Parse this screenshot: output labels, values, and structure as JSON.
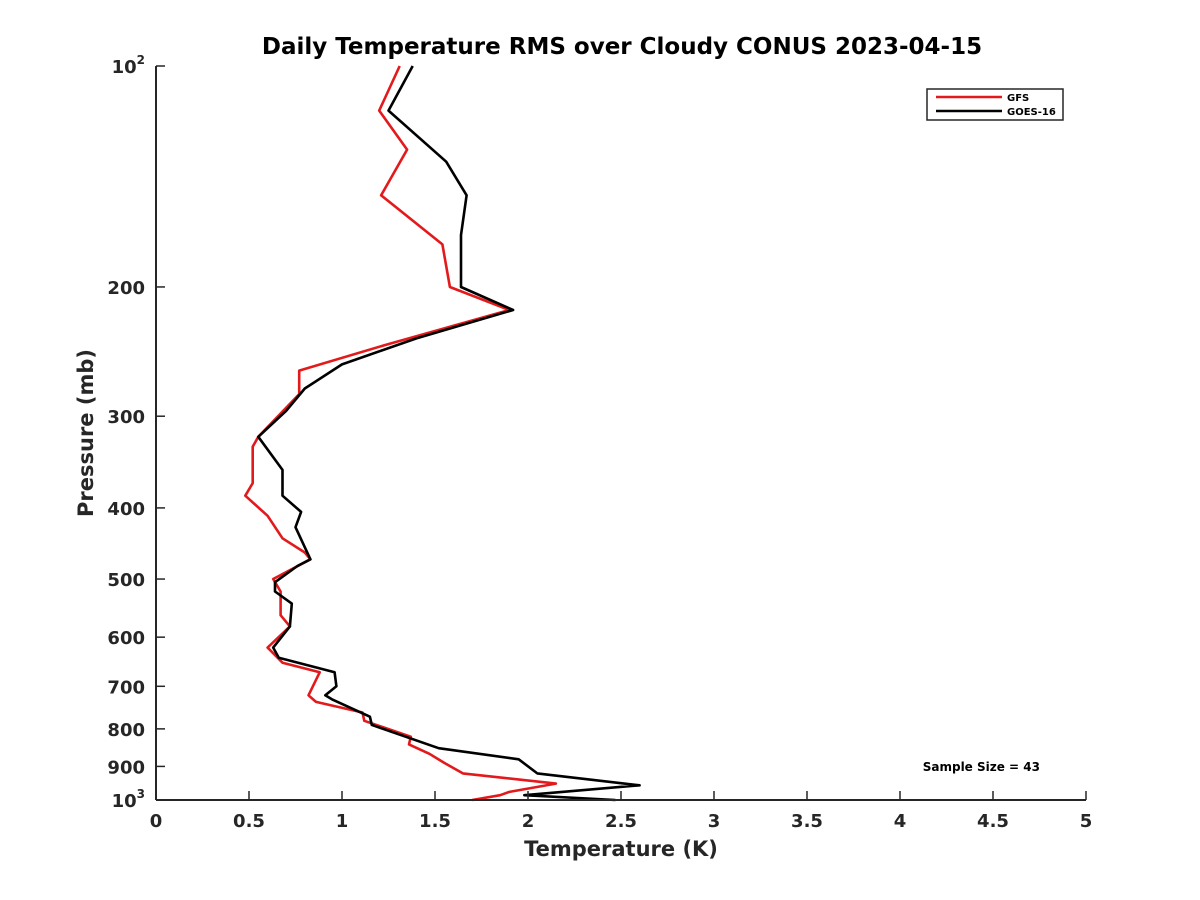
{
  "chart_data": {
    "type": "line",
    "title": "Daily Temperature RMS over Cloudy CONUS 2023-04-15",
    "xlabel": "Temperature (K)",
    "ylabel": "Pressure (mb)",
    "xlim": [
      0,
      5
    ],
    "ylim": [
      100,
      1000
    ],
    "y_scale": "log",
    "y_reversed": true,
    "x_ticks": [
      0,
      0.5,
      1,
      1.5,
      2,
      2.5,
      3,
      3.5,
      4,
      4.5,
      5
    ],
    "x_tick_labels": [
      "0",
      "0.5",
      "1",
      "1.5",
      "2",
      "2.5",
      "3",
      "3.5",
      "4",
      "4.5",
      "5"
    ],
    "y_ticks": [
      {
        "value": 100,
        "base": "10",
        "exp": "2"
      },
      {
        "value": 200,
        "label": "200"
      },
      {
        "value": 300,
        "label": "300"
      },
      {
        "value": 400,
        "label": "400"
      },
      {
        "value": 500,
        "label": "500"
      },
      {
        "value": 600,
        "label": "600"
      },
      {
        "value": 700,
        "label": "700"
      },
      {
        "value": 800,
        "label": "800"
      },
      {
        "value": 900,
        "label": "900"
      },
      {
        "value": 1000,
        "base": "10",
        "exp": "3"
      }
    ],
    "grid": false,
    "legend_position": "top-right",
    "annotation": "Sample Size = 43",
    "series": [
      {
        "name": "GFS",
        "color": "#e31a1c",
        "points": [
          [
            1.31,
            100
          ],
          [
            1.2,
            115
          ],
          [
            1.35,
            130
          ],
          [
            1.21,
            150
          ],
          [
            1.54,
            175
          ],
          [
            1.58,
            200
          ],
          [
            1.9,
            215
          ],
          [
            1.23,
            240
          ],
          [
            0.77,
            260
          ],
          [
            0.77,
            280
          ],
          [
            0.55,
            320
          ],
          [
            0.52,
            330
          ],
          [
            0.52,
            370
          ],
          [
            0.48,
            385
          ],
          [
            0.6,
            410
          ],
          [
            0.68,
            440
          ],
          [
            0.8,
            460
          ],
          [
            0.83,
            470
          ],
          [
            0.63,
            500
          ],
          [
            0.67,
            520
          ],
          [
            0.67,
            560
          ],
          [
            0.72,
            580
          ],
          [
            0.6,
            620
          ],
          [
            0.68,
            650
          ],
          [
            0.88,
            670
          ],
          [
            0.82,
            720
          ],
          [
            0.86,
            735
          ],
          [
            1.11,
            760
          ],
          [
            1.12,
            780
          ],
          [
            1.37,
            820
          ],
          [
            1.36,
            840
          ],
          [
            1.47,
            865
          ],
          [
            1.55,
            890
          ],
          [
            1.65,
            920
          ],
          [
            2.15,
            950
          ],
          [
            1.9,
            975
          ],
          [
            1.85,
            985
          ],
          [
            1.7,
            1000
          ]
        ]
      },
      {
        "name": "GOES-16",
        "color": "#000000",
        "points": [
          [
            1.38,
            100
          ],
          [
            1.25,
            115
          ],
          [
            1.56,
            135
          ],
          [
            1.67,
            150
          ],
          [
            1.64,
            170
          ],
          [
            1.64,
            200
          ],
          [
            1.92,
            215
          ],
          [
            1.4,
            235
          ],
          [
            1.0,
            255
          ],
          [
            0.8,
            275
          ],
          [
            0.7,
            295
          ],
          [
            0.55,
            320
          ],
          [
            0.68,
            355
          ],
          [
            0.68,
            385
          ],
          [
            0.78,
            405
          ],
          [
            0.75,
            425
          ],
          [
            0.83,
            470
          ],
          [
            0.76,
            480
          ],
          [
            0.64,
            505
          ],
          [
            0.64,
            520
          ],
          [
            0.73,
            540
          ],
          [
            0.72,
            580
          ],
          [
            0.63,
            620
          ],
          [
            0.66,
            640
          ],
          [
            0.96,
            670
          ],
          [
            0.97,
            700
          ],
          [
            0.91,
            720
          ],
          [
            0.93,
            725
          ],
          [
            0.95,
            730
          ],
          [
            1.15,
            770
          ],
          [
            1.16,
            790
          ],
          [
            1.52,
            850
          ],
          [
            1.95,
            880
          ],
          [
            2.05,
            920
          ],
          [
            2.6,
            955
          ],
          [
            1.98,
            985
          ],
          [
            2.47,
            1000
          ]
        ]
      }
    ]
  }
}
